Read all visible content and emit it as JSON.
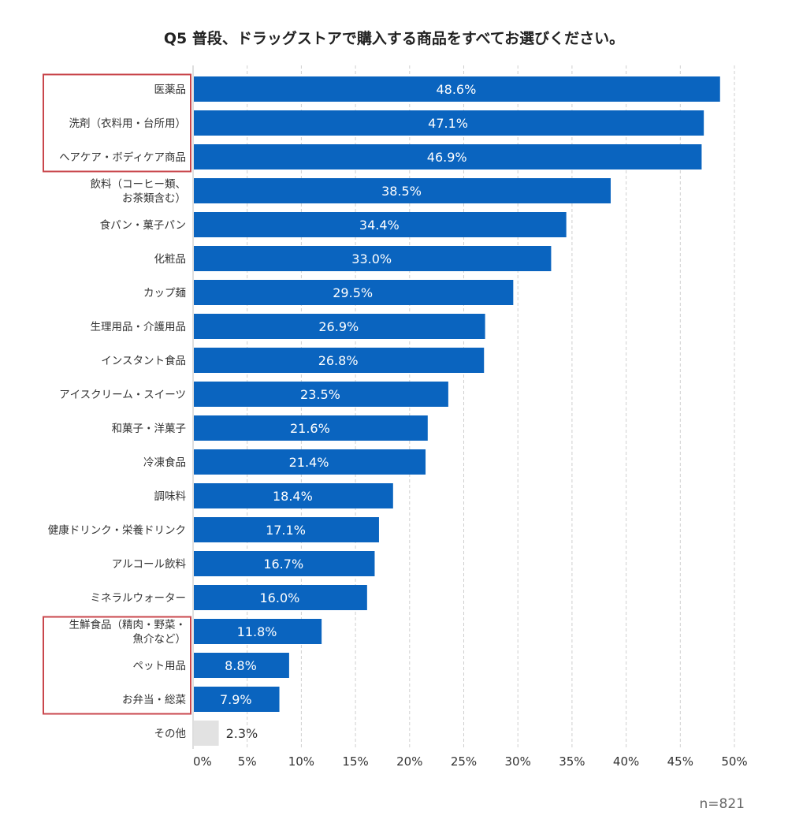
{
  "chart_data": {
    "type": "bar",
    "orientation": "horizontal",
    "title": "Q5 普段、ドラッグストアで購入する商品をすべてお選びください。",
    "sample_size_label": "n=821",
    "categories": [
      [
        "医薬品"
      ],
      [
        "洗剤（衣料用・台所用）"
      ],
      [
        "ヘアケア・ボディケア商品"
      ],
      [
        "飲料（コーヒー類、",
        "お茶類含む）"
      ],
      [
        "食パン・菓子パン"
      ],
      [
        "化粧品"
      ],
      [
        "カップ麺"
      ],
      [
        "生理用品・介護用品"
      ],
      [
        "インスタント食品"
      ],
      [
        "アイスクリーム・スイーツ"
      ],
      [
        "和菓子・洋菓子"
      ],
      [
        "冷凍食品"
      ],
      [
        "調味料"
      ],
      [
        "健康ドリンク・栄養ドリンク"
      ],
      [
        "アルコール飲料"
      ],
      [
        "ミネラルウォーター"
      ],
      [
        "生鮮食品（精肉・野菜・",
        "魚介など）"
      ],
      [
        "ペット用品"
      ],
      [
        "お弁当・総菜"
      ],
      [
        "その他"
      ]
    ],
    "values": [
      48.6,
      47.1,
      46.9,
      38.5,
      34.4,
      33.0,
      29.5,
      26.9,
      26.8,
      23.5,
      21.6,
      21.4,
      18.4,
      17.1,
      16.7,
      16.0,
      11.8,
      8.8,
      7.9,
      2.3
    ],
    "value_labels": [
      "48.6%",
      "47.1%",
      "46.9%",
      "38.5%",
      "34.4%",
      "33.0%",
      "29.5%",
      "26.9%",
      "26.8%",
      "23.5%",
      "21.6%",
      "21.4%",
      "18.4%",
      "17.1%",
      "16.7%",
      "16.0%",
      "11.8%",
      "8.8%",
      "7.9%",
      "2.3%"
    ],
    "x_ticks": [
      0,
      5,
      10,
      15,
      20,
      25,
      30,
      35,
      40,
      45,
      50
    ],
    "x_tick_labels": [
      "0%",
      "5%",
      "10%",
      "15%",
      "20%",
      "25%",
      "30%",
      "35%",
      "40%",
      "45%",
      "50%"
    ],
    "xlim": [
      0,
      50
    ],
    "xlabel": "",
    "ylabel": "",
    "grid": true,
    "highlight_groups": [
      [
        0,
        2
      ],
      [
        16,
        18
      ]
    ],
    "colors": {
      "bar": "#0a64bf",
      "bar_other": "#e2e2e2",
      "label_inside": "#ffffff",
      "label_outside": "#333333",
      "grid": "#cfcfcf",
      "highlight_box": "#c9474c"
    }
  }
}
